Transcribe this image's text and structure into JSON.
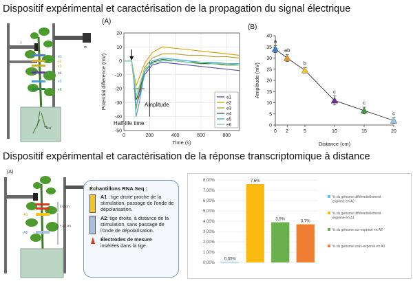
{
  "titles": {
    "top": "Dispositif expérimental et caractérisation de la propagation du signal électrique",
    "bottom": "Dispositif expérimental et caractérisation de la réponse transcriptomique à distance"
  },
  "panel_labels": {
    "A_top": "(A)",
    "B_top": "(B)",
    "A_bottom": "(A)"
  },
  "plant_top": {
    "labels": [
      "e1",
      "e2",
      "e3",
      "e4",
      "e5",
      "e6",
      "ref"
    ],
    "marker": "m",
    "i_label": "I"
  },
  "plant_bottom": {
    "labels": [
      "A1",
      "A2",
      "4-5 cm",
      "≈ 27 cm"
    ]
  },
  "annotations": {
    "amplitude": "Amplitude",
    "half_life": "Half-life time"
  },
  "rna_box": {
    "heading": "Échantillons RNA Seq :",
    "a1_code": "A1",
    "a1_text": " : tige droite proche de la stimulation, passage de l'onde de dépolarisation.",
    "a2_code": "A2",
    "a2_text": ": tige droite, à distance de la stimulation, sans passage de l'onde de dépolarisation.",
    "electrodes_heading": "Électrodes de mesure",
    "electrodes_text": "insérées dans la tige."
  },
  "chart_data": [
    {
      "type": "line",
      "xlabel": "Time (s)",
      "ylabel": "Potential difference (mV)",
      "xlim": [
        0,
        900
      ],
      "ylim": [
        -50,
        20
      ],
      "xticks": [
        0,
        200,
        400,
        600,
        800
      ],
      "yticks": [
        -50,
        -40,
        -30,
        -20,
        -10,
        0,
        10,
        20
      ],
      "legend": "bottom-right",
      "series": [
        {
          "name": "e1",
          "color": "#5a4fa3",
          "x": [
            0,
            60,
            80,
            95,
            120,
            160,
            220,
            300,
            400,
            500,
            600,
            700,
            800,
            900
          ],
          "y": [
            0,
            0,
            -12,
            -33,
            -25,
            -10,
            -3,
            -1,
            -2,
            -3,
            -4,
            -5,
            -6,
            -7
          ]
        },
        {
          "name": "e2",
          "color": "#d9a514",
          "x": [
            0,
            60,
            80,
            95,
            120,
            160,
            220,
            300,
            400,
            500,
            600,
            700,
            800,
            900
          ],
          "y": [
            0,
            0,
            -10,
            -18,
            -12,
            -2,
            6,
            10,
            9,
            8,
            7,
            6,
            5,
            4
          ]
        },
        {
          "name": "e3",
          "color": "#b5a33a",
          "x": [
            0,
            60,
            80,
            95,
            120,
            160,
            220,
            300,
            400,
            500,
            600,
            700,
            800,
            900
          ],
          "y": [
            0,
            0,
            -14,
            -35,
            -20,
            -5,
            2,
            5,
            5,
            4,
            4,
            3,
            3,
            2
          ]
        },
        {
          "name": "e4",
          "color": "#2f6b3a",
          "x": [
            0,
            60,
            80,
            95,
            120,
            160,
            220,
            300,
            400,
            500,
            600,
            700,
            800,
            900
          ],
          "y": [
            0,
            0,
            -15,
            -28,
            -22,
            -8,
            -1,
            1,
            0,
            -1,
            -2,
            -2,
            -3,
            -3
          ]
        },
        {
          "name": "e5",
          "color": "#3fa6d6",
          "x": [
            0,
            60,
            80,
            95,
            120,
            160,
            220,
            300,
            400,
            500,
            600,
            700,
            800,
            900
          ],
          "y": [
            0,
            0,
            -16,
            -40,
            -30,
            -8,
            0,
            2,
            1,
            0,
            -1,
            -1,
            -2,
            -2
          ]
        },
        {
          "name": "e6",
          "color": "#7ad0a0",
          "x": [
            0,
            60,
            80,
            95,
            120,
            160,
            220,
            300,
            400,
            500,
            600,
            700,
            800,
            900
          ],
          "y": [
            0,
            0,
            -12,
            -25,
            -18,
            -6,
            -2,
            0,
            0,
            -1,
            -1,
            -2,
            -2,
            -3
          ]
        }
      ]
    },
    {
      "type": "scatter",
      "xlabel": "Distance (cm)",
      "ylabel": "Amplitude (mV)",
      "xlim": [
        0,
        20
      ],
      "ylim": [
        0,
        40
      ],
      "xticks": [
        0,
        2,
        5,
        10,
        15,
        20
      ],
      "yticks": [
        0,
        5,
        10,
        15,
        20,
        25,
        30,
        35,
        40
      ],
      "points": [
        {
          "x": 0,
          "y": 34,
          "err": 1.5,
          "letter": "a",
          "color": "#3a7dc4"
        },
        {
          "x": 2,
          "y": 30,
          "err": 1.5,
          "letter": "ab",
          "color": "#e8942a"
        },
        {
          "x": 5,
          "y": 24.5,
          "err": 1.2,
          "letter": "b",
          "color": "#f2c233"
        },
        {
          "x": 10,
          "y": 11,
          "err": 2,
          "letter": "c",
          "color": "#6a2d8f"
        },
        {
          "x": 15,
          "y": 6.5,
          "err": 1.5,
          "letter": "c",
          "color": "#3e9a3e"
        },
        {
          "x": 20,
          "y": 2,
          "err": 1.3,
          "letter": "c",
          "color": "#8fc6e8"
        }
      ]
    },
    {
      "type": "bar",
      "ylim": [
        0,
        8
      ],
      "yticks": [
        "0,00%",
        "1,00%",
        "2,00%",
        "3,00%",
        "4,00%",
        "5,00%",
        "6,00%",
        "7,00%",
        "8,00%"
      ],
      "values": [
        0.05,
        7.6,
        3.9,
        3.7
      ],
      "value_labels": [
        "0,05%",
        "7,6%",
        "3,9%",
        "3,7%"
      ],
      "colors": [
        "#5bc0eb",
        "#f9b90f",
        "#6ab04c",
        "#ef7d31"
      ],
      "legend": "right",
      "series_names": [
        "% du génome différentiellement exprimé en A2",
        "% du génome différentiellement exprimé en A1",
        "% du génome sur-exprimé en A2",
        "% du génome sous-exprimé en A1"
      ]
    }
  ]
}
